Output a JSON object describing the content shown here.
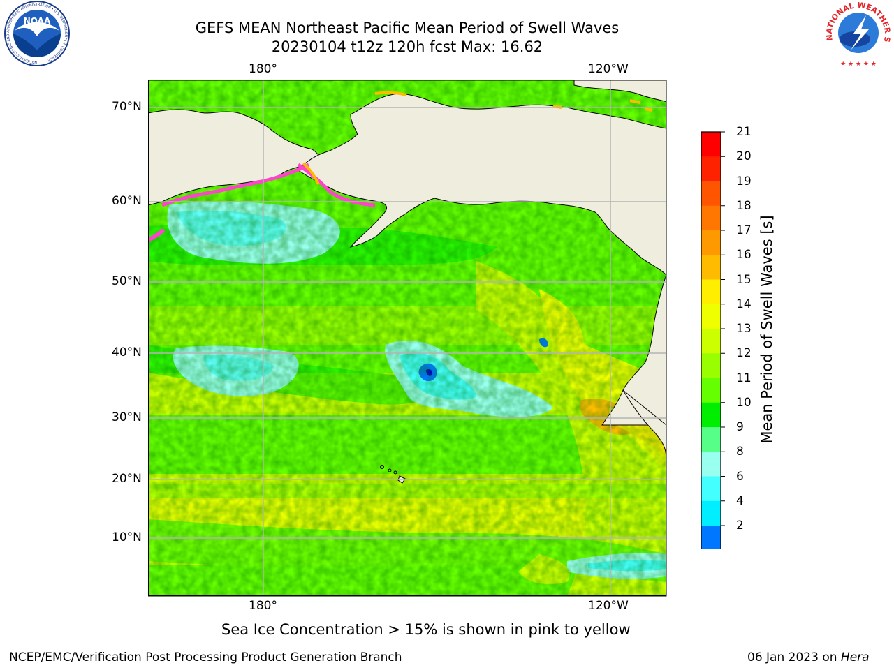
{
  "header": {
    "title_line1": "GEFS MEAN Northeast Pacific Mean Period of Swell Waves",
    "title_line2": "20230104 t12z 120h fcst   Max: 16.62"
  },
  "logos": {
    "noaa_text": "NOAA",
    "noaa_ring": "NATIONAL OCEANIC AND ATMOSPHERIC ADMINISTRATION • U.S. DEPARTMENT OF COMMERCE",
    "nws_ring": "NATIONAL WEATHER SERVICE"
  },
  "map": {
    "lon_ticks_top": [
      "180°",
      "120°W"
    ],
    "lon_ticks_bottom": [
      "180°",
      "120°W"
    ],
    "lat_ticks": [
      "70°N",
      "60°N",
      "50°N",
      "40°N",
      "30°N",
      "20°N",
      "10°N"
    ],
    "colors": {
      "land": "#efedde",
      "grid": "#b4b4b4"
    }
  },
  "colorbar": {
    "label": "Mean Period of Swell Waves [s]",
    "ticks": [
      "21",
      "20",
      "19",
      "18",
      "17",
      "16",
      "15",
      "14",
      "13",
      "12",
      "11",
      "10",
      "9",
      "8",
      "6",
      "4",
      "2"
    ],
    "colors": [
      "#ff0000",
      "#ff2200",
      "#ff5500",
      "#ff7700",
      "#ff9900",
      "#ffbb00",
      "#ffee00",
      "#f0ff00",
      "#ccff00",
      "#99ff00",
      "#66ff00",
      "#00ee00",
      "#55ff88",
      "#99ffee",
      "#44ffff",
      "#00eeff",
      "#0077ff"
    ],
    "extend_color": "#0000ee"
  },
  "footer": {
    "note": "Sea Ice Concentration > 15% is shown in pink to yellow",
    "org": "NCEP/EMC/Verification Post Processing Product Generation Branch",
    "date": "06 Jan 2023 on ",
    "host": "Hera"
  }
}
